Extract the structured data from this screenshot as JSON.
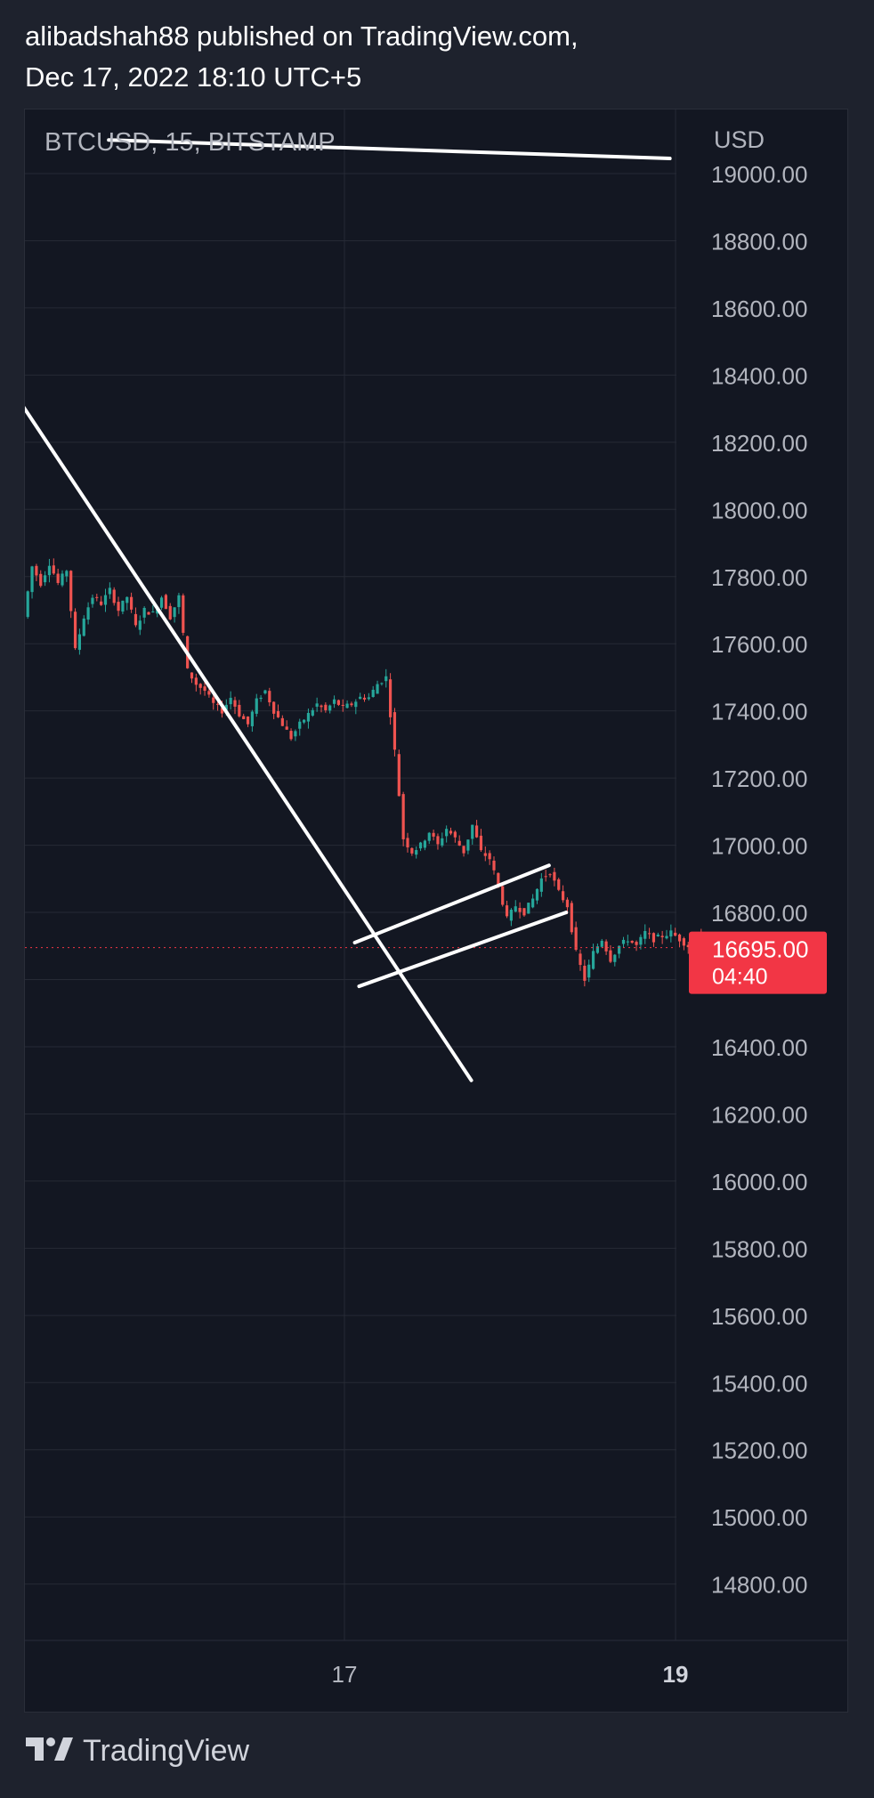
{
  "header": {
    "line1": "alibadshah88 published on TradingView.com,",
    "line2": "Dec 17, 2022 18:10 UTC+5"
  },
  "symbol_info": "BTCUSD, 15, BITSTAMP",
  "footer": {
    "brand": "TradingView",
    "logo_icon": "tradingview-logo-icon"
  },
  "colors": {
    "background": "#1e222d",
    "chart_bg": "#131722",
    "grid": "#262a35",
    "text": "#b2b5be",
    "up_candle": "#26a69a",
    "down_candle": "#ef5350",
    "price_label": "#f23645",
    "trendline": "#ffffff"
  },
  "chart_data": {
    "type": "candlestick",
    "symbol": "BTCUSD",
    "interval": "15",
    "exchange": "BITSTAMP",
    "currency": "USD",
    "y_ticks": [
      19000,
      18800,
      18600,
      18400,
      18200,
      18000,
      17800,
      17600,
      17400,
      17200,
      17000,
      16800,
      16600,
      16400,
      16200,
      16000,
      15800,
      15600,
      15400,
      15200,
      15000,
      14800
    ],
    "y_tick_labels": [
      "19000.00",
      "18800.00",
      "18600.00",
      "18400.00",
      "18200.00",
      "18000.00",
      "17800.00",
      "17600.00",
      "17400.00",
      "17200.00",
      "17000.00",
      "16800.00",
      "",
      "16400.00",
      "16200.00",
      "16000.00",
      "15800.00",
      "15600.00",
      "15400.00",
      "15200.00",
      "15000.00",
      "14800.00"
    ],
    "x_ticks": [
      {
        "label": "17",
        "bold": false
      },
      {
        "label": "19",
        "bold": true
      }
    ],
    "last_price": 16695.0,
    "last_price_label": "16695.00",
    "countdown": "04:40",
    "price_path": [
      17680,
      17830,
      17780,
      17840,
      17780,
      17820,
      17580,
      17680,
      17740,
      17720,
      17760,
      17700,
      17740,
      17650,
      17700,
      17690,
      17740,
      17680,
      17740,
      17520,
      17480,
      17460,
      17420,
      17400,
      17440,
      17390,
      17360,
      17430,
      17460,
      17400,
      17360,
      17320,
      17360,
      17390,
      17420,
      17400,
      17430,
      17410,
      17420,
      17440,
      17440,
      17480,
      17500,
      17280,
      17020,
      16980,
      17000,
      17040,
      17000,
      17050,
      17020,
      16980,
      17060,
      16980,
      16960,
      16880,
      16780,
      16820,
      16800,
      16840,
      16900,
      16920,
      16860,
      16820,
      16680,
      16600,
      16680,
      16720,
      16660,
      16700,
      16720,
      16700,
      16740,
      16720,
      16730,
      16740,
      16720,
      16700,
      16740,
      16720,
      16700,
      16710,
      16695
    ],
    "trendlines": [
      {
        "name": "upper-resistance-line",
        "p1": {
          "bar": 19,
          "price": 19100
        },
        "p2": {
          "bar": 149,
          "price": 19045
        }
      },
      {
        "name": "descending-trendline",
        "p1": {
          "bar": -1,
          "price": 18310
        },
        "p2": {
          "bar": 103,
          "price": 16300
        }
      },
      {
        "name": "channel-upper-line",
        "p1": {
          "bar": 76,
          "price": 16710
        },
        "p2": {
          "bar": 121,
          "price": 16940
        }
      },
      {
        "name": "channel-lower-line",
        "p1": {
          "bar": 77,
          "price": 16580
        },
        "p2": {
          "bar": 125,
          "price": 16800
        }
      }
    ]
  }
}
